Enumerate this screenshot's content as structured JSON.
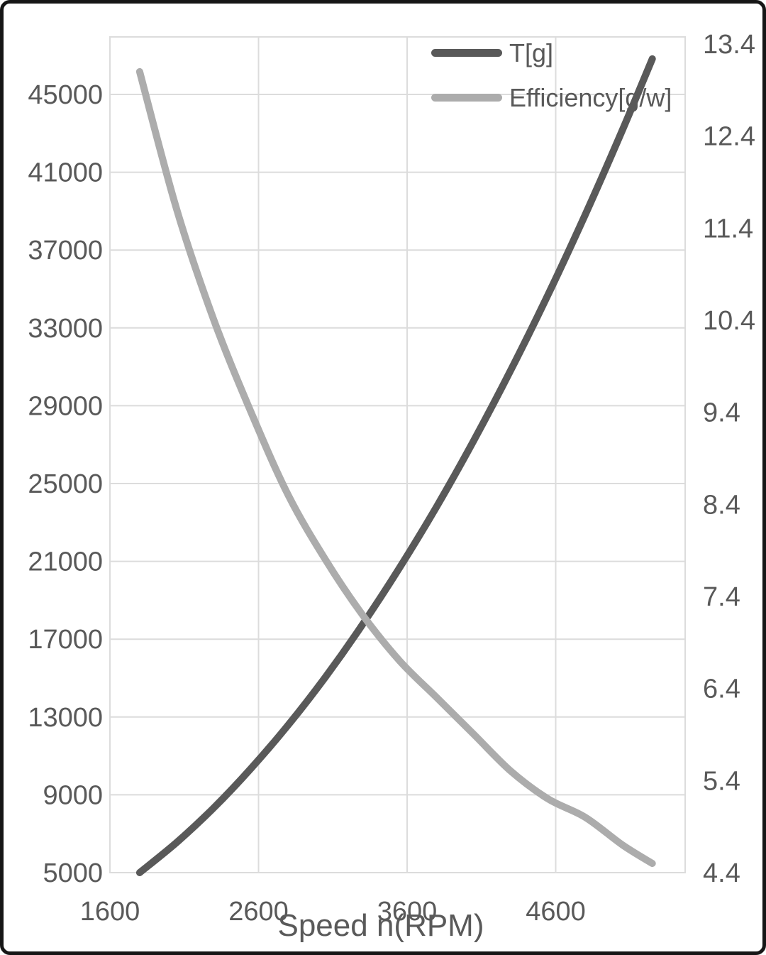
{
  "colors": {
    "t_series": "#595959",
    "efficiency_series": "#ACACAC",
    "grid": "#DCDCDC",
    "axis_text": "#595959",
    "frame": "#161616",
    "background": "#FFFFFF"
  },
  "legend": {
    "position": "top-right",
    "items": [
      {
        "label": "T[g]",
        "color": "#595959"
      },
      {
        "label": "Efficiency[g/w]",
        "color": "#ACACAC"
      }
    ]
  },
  "chart_data": {
    "type": "line",
    "title": "",
    "xlabel": "Speed n(RPM)",
    "grid": true,
    "legend_position": "top-right",
    "x": [
      1800,
      2050,
      2300,
      2550,
      2800,
      3050,
      3300,
      3550,
      3800,
      4050,
      4300,
      4550,
      4800,
      5050,
      5250
    ],
    "series": [
      {
        "name": "T[g]",
        "yaxis": "left",
        "color": "#595959",
        "values": [
          5000,
          6560,
          8340,
          10360,
          12590,
          15050,
          17750,
          20680,
          23830,
          27230,
          30860,
          34730,
          38840,
          43190,
          46830
        ]
      },
      {
        "name": "Efficiency[g/w]",
        "yaxis": "right",
        "color": "#ACACAC",
        "values": [
          13.1,
          11.6,
          10.4,
          9.4,
          8.5,
          7.8,
          7.2,
          6.7,
          6.3,
          5.9,
          5.5,
          5.2,
          5.0,
          4.7,
          4.5
        ]
      }
    ],
    "x_axis": {
      "title": "Speed n(RPM)",
      "min": 1600,
      "max": 5470,
      "tick_step": 1000,
      "ticks": [
        "1600",
        "2600",
        "3600",
        "4600"
      ]
    },
    "left_axis": {
      "min": 5000,
      "tick_step": 4000,
      "ticks": [
        "5000",
        "9000",
        "13000",
        "17000",
        "21000",
        "25000",
        "29000",
        "33000",
        "37000",
        "41000",
        "45000"
      ]
    },
    "right_axis": {
      "min": 4.4,
      "max": 13.4,
      "tick_step": 1.0,
      "ticks": [
        "4.4",
        "5.4",
        "6.4",
        "7.4",
        "8.4",
        "9.4",
        "10.4",
        "11.4",
        "12.4",
        "13.4"
      ]
    }
  }
}
